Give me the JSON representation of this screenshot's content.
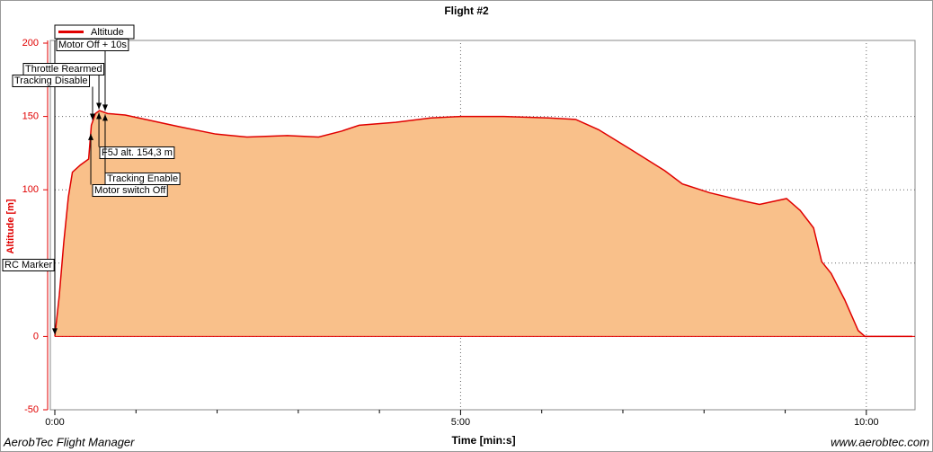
{
  "chart_data": {
    "type": "area",
    "title": "Flight #2",
    "xlabel": "Time [min:s]",
    "ylabel": "Altitude [m]",
    "footer_left": "AerobTec Flight Manager",
    "footer_right": "www.aerobtec.com",
    "xlim": [
      0,
      636
    ],
    "ylim": [
      -50,
      200
    ],
    "xticks": [
      {
        "value": 0,
        "label": "0:00"
      },
      {
        "value": 300,
        "label": "5:00"
      },
      {
        "value": 600,
        "label": "10:00"
      }
    ],
    "xminor_ticks": [
      60,
      120,
      180,
      240,
      360,
      420,
      480,
      540
    ],
    "yticks": [
      -50,
      0,
      50,
      100,
      150,
      200
    ],
    "grid": true,
    "legend": "top-left",
    "series": [
      {
        "name": "Altitude",
        "color": "#e00000",
        "fill": "#f9c08a",
        "x": [
          0,
          3.3,
          6.6,
          10,
          13,
          19,
          25,
          27,
          30,
          33,
          39,
          52,
          72,
          92,
          119,
          142,
          172,
          195,
          212,
          225,
          252,
          278,
          300,
          332,
          365,
          385,
          402,
          425,
          451,
          464,
          484,
          511,
          521,
          541,
          551,
          561,
          567,
          574,
          584,
          594,
          599,
          634
        ],
        "values": [
          0,
          28,
          64,
          95,
          112,
          117,
          121,
          144,
          152,
          154,
          152,
          151,
          147,
          143,
          138,
          136,
          137,
          136,
          140,
          144,
          146,
          149,
          150,
          150,
          149,
          148,
          141,
          128,
          113,
          104,
          98,
          92,
          90,
          94,
          86,
          74,
          51,
          43,
          25,
          4,
          0,
          0
        ]
      }
    ],
    "annotations": [
      {
        "text": "RC Marker",
        "x": 0
      },
      {
        "text": "Motor switch Off",
        "x": 26.6
      },
      {
        "text": "Tracking Disable",
        "x": 27.9
      },
      {
        "text": "Throttle Rearmed",
        "x": 32.6
      },
      {
        "text": "F5J alt. 154,3 m",
        "x": 32.6
      },
      {
        "text": "Motor Off + 10s",
        "x": 37.2
      },
      {
        "text": "Tracking Enable",
        "x": 37.2
      }
    ]
  }
}
